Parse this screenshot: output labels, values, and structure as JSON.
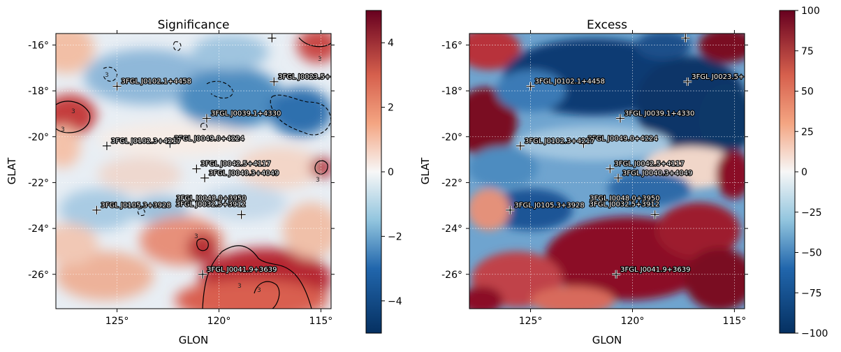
{
  "colors": {
    "neg_dark": "#053061",
    "neg_mid": "#2166ac",
    "neg_light": "#92c5de",
    "neutral": "#f7f7f7",
    "pos_light": "#f4a582",
    "pos_mid": "#d6604d",
    "pos_dark": "#67001f"
  },
  "chart_data": [
    {
      "type": "heatmap",
      "title": "Significance",
      "xlabel": "GLON",
      "ylabel": "GLAT",
      "x_ticks": [
        "125°",
        "120°",
        "115°"
      ],
      "y_ticks": [
        "-16°",
        "-18°",
        "-20°",
        "-22°",
        "-24°",
        "-26°"
      ],
      "xlim": [
        128,
        114.5
      ],
      "ylim": [
        -27.5,
        -15.5
      ],
      "colorbar": {
        "vmin": -5,
        "vmax": 5,
        "ticks": [
          "4",
          "2",
          "0",
          "−2",
          "−4"
        ]
      },
      "contour_label": "3",
      "grid": true
    },
    {
      "type": "heatmap",
      "title": "Excess",
      "xlabel": "GLON",
      "ylabel": "GLAT",
      "x_ticks": [
        "125°",
        "120°",
        "115°"
      ],
      "y_ticks": [
        "-16°",
        "-18°",
        "-20°",
        "-22°",
        "-24°",
        "-26°"
      ],
      "xlim": [
        128,
        114.5
      ],
      "ylim": [
        -27.5,
        -15.5
      ],
      "colorbar": {
        "vmin": -100,
        "vmax": 100,
        "ticks": [
          "100",
          "75",
          "50",
          "25",
          "0",
          "−25",
          "−50",
          "−75",
          "−100"
        ]
      },
      "grid": true
    }
  ],
  "sources": [
    {
      "name": "3FGL J0102.1+4458",
      "glon": 125.0,
      "glat": -17.8
    },
    {
      "name": "3FGL J0023.5+",
      "glon": 117.3,
      "glat": -17.6
    },
    {
      "name": "3FGL J0039.1+4330",
      "glon": 120.6,
      "glat": -19.2
    },
    {
      "name": "3FGL J0049.0+4224",
      "glon": 122.4,
      "glat": -20.3
    },
    {
      "name": "3FGL J0102.3+4217",
      "glon": 125.5,
      "glat": -20.4
    },
    {
      "name": "3FGL J0042.5+4117",
      "glon": 121.1,
      "glat": -21.4
    },
    {
      "name": "3FGL J0040.3+4049",
      "glon": 120.7,
      "glat": -21.8
    },
    {
      "name": "3FGL J0048.0+3950",
      "glon": 118.9,
      "glat": -23.4,
      "label_glon": 122.1,
      "label_glat": -22.9
    },
    {
      "name": "3FGL J0105.3+3928",
      "glon": 126.0,
      "glat": -23.2
    },
    {
      "name": "3FGL J0032.5+3912",
      "glon": 118.9,
      "glat": -23.4,
      "label_only": true
    },
    {
      "name": "3FGL J0041.9+3639",
      "glon": 120.8,
      "glat": -26.0
    },
    {
      "name": "",
      "glon": 117.4,
      "glat": -15.7
    }
  ]
}
